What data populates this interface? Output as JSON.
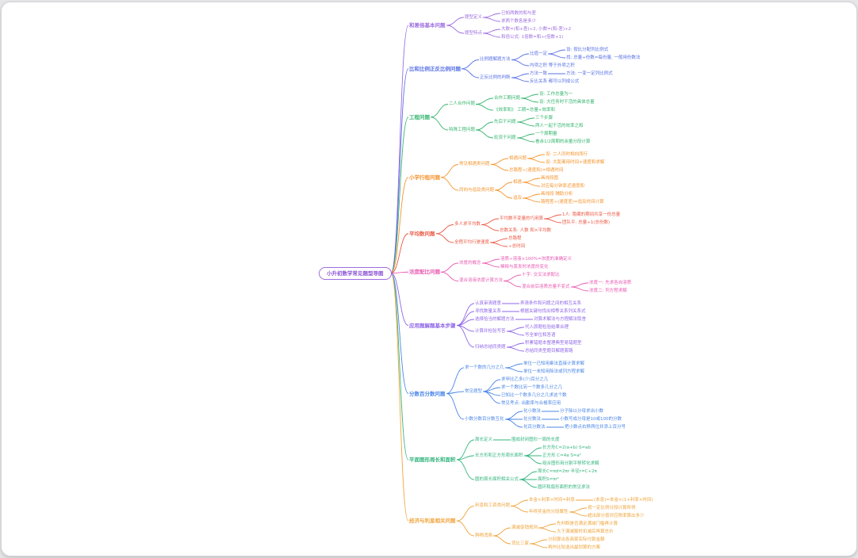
{
  "window": {
    "background": "#e6e6e8",
    "canvas_color": "#ffffff"
  },
  "mindmap": {
    "title": "小升初数学常见题型导图",
    "root_color": "#9d6ce0",
    "branches": [
      {
        "label": "和差倍基本问题",
        "color": "#9d6ce0",
        "children": [
          {
            "label": "题型定义",
            "children": [
              {
                "label": "已知两数的和与差"
              },
              {
                "label": "求两个数各是多少"
              }
            ]
          },
          {
            "label": "题型特点",
            "children": [
              {
                "label": "大数=(和+差)÷2, 小数=(和-差)÷2"
              },
              {
                "label": "和倍公式: 1倍数=和÷(倍数+1)"
              }
            ]
          }
        ]
      },
      {
        "label": "比和比例正反比例问题",
        "color": "#5871e6",
        "children": [
          {
            "label": "比例题解题方法",
            "children": [
              {
                "label": "比值一定",
                "children": [
                  {
                    "label": "设: 按比分配列比例式"
                  },
                  {
                    "label": "找: 总量÷份数=每份量, 一般用份数法"
                  }
                ]
              },
              {
                "label": "内项之积 等于外项之积"
              }
            ]
          },
          {
            "label": "正反比例的判断",
            "children": [
              {
                "label": "方法一致",
                "children": [
                  {
                    "label": "方法: 一变一定列比例式"
                  }
                ]
              },
              {
                "label": "反比关系 都可以列成公式"
              }
            ]
          }
        ]
      },
      {
        "label": "工程问题",
        "color": "#34b56e",
        "children": [
          {
            "label": "二人合作问题",
            "children": [
              {
                "label": "合作工期问题",
                "children": [
                  {
                    "label": "设: 工作总量为一"
                  },
                  {
                    "label": "设: 大任务时干活的具体总量"
                  }
                ]
              },
              {
                "label": "《效率和》 工期=总量÷效率和"
              }
            ]
          },
          {
            "label": "特殊工程问题",
            "children": [
              {
                "label": "先后干问题",
                "children": [
                  {
                    "label": "三个步骤"
                  },
                  {
                    "label": "两人一起干活的效率之和"
                  }
                ]
              },
              {
                "label": "轮流干问题",
                "children": [
                  {
                    "label": "一个周期量"
                  },
                  {
                    "label": "看余1/2周期的余量分段计算"
                  }
                ]
              }
            ]
          }
        ]
      },
      {
        "label": "小学行程问题",
        "color": "#f5942e",
        "children": [
          {
            "label": "常见相遇类问题",
            "children": [
              {
                "label": "相遇问题",
                "children": [
                  {
                    "label": "设: 二人同时相向而行"
                  },
                  {
                    "label": "设: 大距离用时间×速度和求解"
                  }
                ]
              },
              {
                "label": "总路程÷(速度和)=相遇时间"
              }
            ]
          },
          {
            "label": "同向与追及类问题",
            "children": [
              {
                "label": "相遇",
                "children": [
                  {
                    "label": "画线段图"
                  },
                  {
                    "label": "对应每分钟靠近速度和"
                  }
                ]
              },
              {
                "label": "追及",
                "children": [
                  {
                    "label": "画线段 辅助分析"
                  },
                  {
                    "label": "路程差÷(速度差)=追及时间计算"
                  }
                ]
              }
            ]
          }
        ]
      },
      {
        "label": "平均数问题",
        "color": "#eb5a46",
        "children": [
          {
            "label": "多人求平均数",
            "children": [
              {
                "label": "平均数不变量的巧用算",
                "children": [
                  {
                    "label": "1人: 隐藏的期间共享一份总量"
                  },
                  {
                    "label": "团队平: 总量÷1(总份数)"
                  }
                ]
              },
              {
                "label": "总数关系: 人数 和×平均数"
              }
            ]
          },
          {
            "label": "全程平均行驶速度",
            "children": [
              {
                "label": "总路程"
              },
              {
                "label": "÷总时间"
              }
            ]
          }
        ]
      },
      {
        "label": "浓度配比问题",
        "color": "#e95cb2",
        "children": [
          {
            "label": "浓度的概念",
            "children": [
              {
                "label": "溶质÷溶液×100%=浓度的准确定义"
              },
              {
                "label": "稀释与蒸发时浓度的变化"
              }
            ]
          },
          {
            "label": "混合溶液浓度计算方法",
            "children": [
              {
                "label": "十字: 交叉法求配比"
              },
              {
                "label": "混合前后溶质总量不变式",
                "children": [
                  {
                    "label": "浓度一: 先求各自溶质"
                  },
                  {
                    "label": "浓度二: 列方程求解"
                  }
                ]
              }
            ]
          }
        ]
      },
      {
        "label": "应用题解题基本步骤",
        "color": "#8f66e8",
        "children": [
          {
            "label": "认真审清题意",
            "children": [
              {
                "label": "弄清条件和问题之间的相互关系"
              }
            ]
          },
          {
            "label": "寻找数量关系",
            "children": [
              {
                "label": "根据关键句找出相等关系列关系式"
              }
            ]
          },
          {
            "label": "选择恰当的解题方法",
            "children": [
              {
                "label": "对算术解法与方程解法取舍"
              }
            ]
          },
          {
            "label": "计算并检验写答",
            "children": [
              {
                "label": "代入原题检验结果合理"
              },
              {
                "label": "写全单位和答语"
              }
            ]
          },
          {
            "label": "归纳总结同类题",
            "children": [
              {
                "label": "积累错题本整理典型易错题型"
              },
              {
                "label": "总结同类型题目解题套路"
              }
            ]
          }
        ]
      },
      {
        "label": "分数百分数问题",
        "color": "#4b86e8",
        "children": [
          {
            "label": "求一个数的几分之几",
            "children": [
              {
                "label": "单位一已知用乘法直接计算求解"
              },
              {
                "label": "单位一未知用除法或列方程求解"
              }
            ]
          },
          {
            "label": "常见题型",
            "children": [
              {
                "label": "求甲比乙多(少)百分之几"
              },
              {
                "label": "求一个数比另一个数多几分之几"
              },
              {
                "label": "已知比一个数多几分之几求这个数"
              },
              {
                "label": "常见考点: 出勤率与合格率应用"
              }
            ]
          },
          {
            "label": "小数分数百分数互化",
            "children": [
              {
                "label": "化小数法",
                "children": [
                  {
                    "label": "分子除以分母求出小数"
                  }
                ]
              },
              {
                "label": "化分数法",
                "children": [
                  {
                    "label": "小数写成分母是10或100的分数"
                  }
                ]
              },
              {
                "label": "化百分数法",
                "children": [
                  {
                    "label": "把小数点右移两位并添上百分号"
                  }
                ]
              }
            ]
          }
        ]
      },
      {
        "label": "平面图形周长和面积",
        "color": "#34b57e",
        "children": [
          {
            "label": "周长定义",
            "children": [
              {
                "label": "围成封闭图形一周的长度"
              }
            ]
          },
          {
            "label": "长方形和正方形周长面积",
            "children": [
              {
                "label": "长方形C=2(a+b) S=ab"
              },
              {
                "label": "正方形 C=4a S=a²"
              },
              {
                "label": "组合图形用分割平移转化求解"
              }
            ]
          },
          {
            "label": "圆的周长面积相关公式",
            "children": [
              {
                "label": "周长C=πd=2πr 半径r=C÷2π"
              },
              {
                "label": "面积S=πr²"
              },
              {
                "label": "圆环和扇形面积的常见求法"
              }
            ]
          }
        ]
      },
      {
        "label": "经济与利息相关问题",
        "color": "#f0a43c",
        "children": [
          {
            "label": "利息和工资类问题",
            "children": [
              {
                "label": "本金×利率×时间=利息",
                "children": [
                  {
                    "label": "(本息)=本金×(1+利率×时间)"
                  }
                ]
              },
              {
                "label": "年终奖金的分段属性",
                "children": [
                  {
                    "label": "按一定比例分段计算所得"
                  },
                  {
                    "label": "超出部分按对应税率算出多少"
                  }
                ]
              }
            ]
          },
          {
            "label": "购物消费",
            "children": [
              {
                "label": "满减促销规则",
                "children": [
                  {
                    "label": "先判断是否满足满减门槛再计算"
                  },
                  {
                    "label": "大于满减额时扣减后再算总价"
                  }
                ]
              },
              {
                "label": "货比三家",
                "children": [
                  {
                    "label": "分别算出各商家实际付款金额"
                  },
                  {
                    "label": "再作比较选出最划算的方案"
                  }
                ]
              }
            ]
          }
        ]
      }
    ]
  }
}
